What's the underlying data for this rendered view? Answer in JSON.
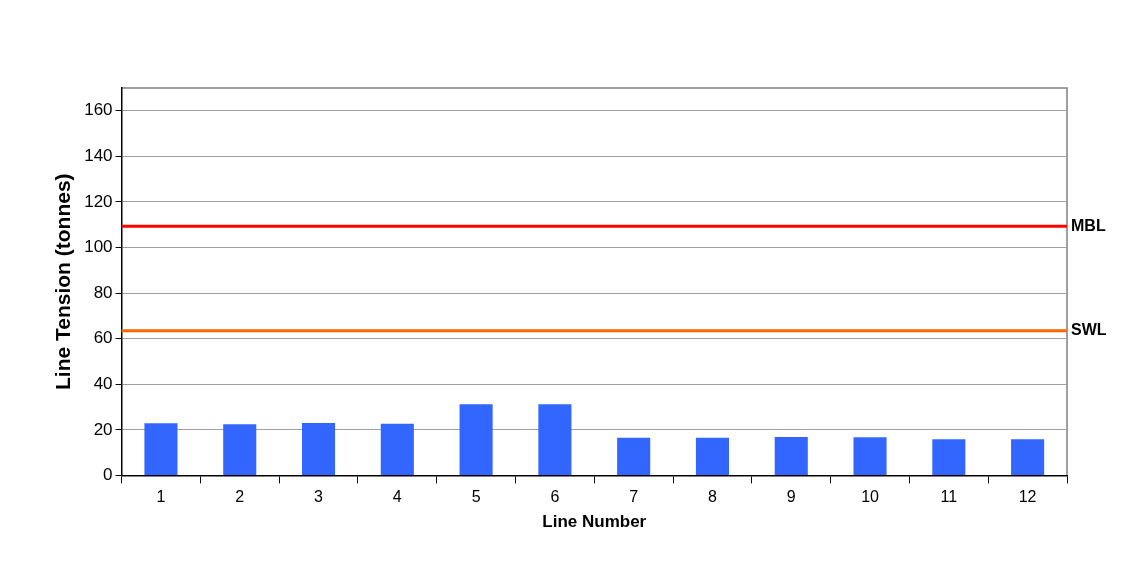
{
  "chart_data": {
    "type": "bar",
    "xlabel": "Line Number",
    "ylabel": "Line Tension (tonnes)",
    "categories": [
      "1",
      "2",
      "3",
      "4",
      "5",
      "6",
      "7",
      "8",
      "9",
      "10",
      "11",
      "12"
    ],
    "values": [
      22.9,
      22.4,
      23.0,
      22.7,
      31.2,
      31.2,
      16.5,
      16.5,
      16.8,
      16.7,
      15.9,
      15.9
    ],
    "color": "#3366ff",
    "ylim": [
      0,
      170
    ],
    "yticks": [
      0,
      20,
      40,
      60,
      80,
      100,
      120,
      140,
      160
    ],
    "grid": "y",
    "legend": false,
    "ref_lines": [
      {
        "axis": "y",
        "value": 109.3,
        "label": "MBL",
        "color": "#ff0000"
      },
      {
        "axis": "y",
        "value": 63.5,
        "label": "SWL",
        "color": "#ff6600"
      }
    ]
  }
}
